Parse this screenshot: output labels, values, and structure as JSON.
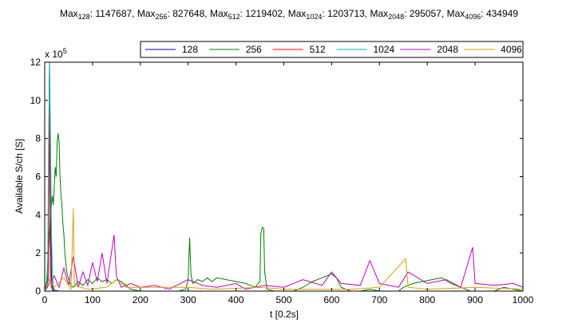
{
  "title_parts": [
    {
      "text": "Max",
      "sub": "128",
      "value": ": 1147687, "
    },
    {
      "text": "Max",
      "sub": "256",
      "value": ": 827648, "
    },
    {
      "text": "Max",
      "sub": "512",
      "value": ": 1219402, "
    },
    {
      "text": "Max",
      "sub": "1024",
      "value": ": 1203713, "
    },
    {
      "text": "Max",
      "sub": "2048",
      "value": ": 295057, "
    },
    {
      "text": "Max",
      "sub": "4096",
      "value": ": 434949"
    }
  ],
  "chart_data": {
    "type": "line",
    "xlabel": "t [0.2s]",
    "ylabel": "Available S/ch [S]",
    "xlim": [
      0,
      1000
    ],
    "ylim": [
      0,
      1200000
    ],
    "xticks": [
      0,
      100,
      200,
      300,
      400,
      500,
      600,
      700,
      800,
      900,
      1000
    ],
    "yticks": [
      0,
      2,
      4,
      6,
      8,
      10,
      12
    ],
    "y_multiplier_base": "x 10",
    "y_multiplier_exp": "5",
    "grid": false,
    "legend_position": "top-right",
    "series": [
      {
        "name": "128",
        "color": "#0000b4",
        "points": [
          [
            5,
            20000
          ],
          [
            8,
            300000
          ],
          [
            10,
            1147687
          ],
          [
            12,
            500000
          ],
          [
            14,
            80000
          ],
          [
            16,
            20000
          ],
          [
            18,
            5000
          ],
          [
            30,
            0
          ],
          [
            100,
            0
          ],
          [
            300,
            0
          ],
          [
            600,
            0
          ],
          [
            1000,
            0
          ]
        ]
      },
      {
        "name": "256",
        "color": "#008000",
        "points": [
          [
            0,
            0
          ],
          [
            4,
            50000
          ],
          [
            8,
            200000
          ],
          [
            12,
            400000
          ],
          [
            16,
            500000
          ],
          [
            18,
            450000
          ],
          [
            20,
            550000
          ],
          [
            22,
            650000
          ],
          [
            24,
            600000
          ],
          [
            26,
            780000
          ],
          [
            28,
            827648
          ],
          [
            30,
            780000
          ],
          [
            32,
            600000
          ],
          [
            34,
            500000
          ],
          [
            36,
            450000
          ],
          [
            38,
            350000
          ],
          [
            40,
            300000
          ],
          [
            42,
            200000
          ],
          [
            44,
            150000
          ],
          [
            46,
            100000
          ],
          [
            50,
            60000
          ],
          [
            55,
            30000
          ],
          [
            60,
            20000
          ],
          [
            70,
            50000
          ],
          [
            80,
            30000
          ],
          [
            90,
            60000
          ],
          [
            100,
            40000
          ],
          [
            110,
            70000
          ],
          [
            120,
            50000
          ],
          [
            130,
            60000
          ],
          [
            140,
            40000
          ],
          [
            150,
            60000
          ],
          [
            160,
            50000
          ],
          [
            170,
            30000
          ],
          [
            180,
            10000
          ],
          [
            200,
            0
          ],
          [
            280,
            0
          ],
          [
            295,
            10000
          ],
          [
            300,
            60000
          ],
          [
            303,
            280000
          ],
          [
            306,
            80000
          ],
          [
            310,
            40000
          ],
          [
            320,
            60000
          ],
          [
            330,
            50000
          ],
          [
            340,
            70000
          ],
          [
            350,
            50000
          ],
          [
            360,
            70000
          ],
          [
            380,
            60000
          ],
          [
            400,
            50000
          ],
          [
            420,
            40000
          ],
          [
            440,
            20000
          ],
          [
            450,
            50000
          ],
          [
            452,
            300000
          ],
          [
            455,
            335000
          ],
          [
            458,
            330000
          ],
          [
            460,
            100000
          ],
          [
            465,
            10000
          ],
          [
            480,
            0
          ],
          [
            520,
            0
          ],
          [
            540,
            20000
          ],
          [
            560,
            50000
          ],
          [
            580,
            70000
          ],
          [
            600,
            90000
          ],
          [
            610,
            70000
          ],
          [
            620,
            20000
          ],
          [
            640,
            0
          ],
          [
            660,
            0
          ],
          [
            680,
            10000
          ],
          [
            700,
            0
          ],
          [
            740,
            0
          ],
          [
            750,
            20000
          ],
          [
            770,
            40000
          ],
          [
            790,
            50000
          ],
          [
            810,
            60000
          ],
          [
            830,
            70000
          ],
          [
            850,
            40000
          ],
          [
            870,
            20000
          ],
          [
            890,
            0
          ],
          [
            940,
            0
          ],
          [
            960,
            20000
          ],
          [
            980,
            10000
          ],
          [
            1000,
            0
          ]
        ]
      },
      {
        "name": "512",
        "color": "#ff0000",
        "points": [
          [
            0,
            0
          ],
          [
            8,
            50000
          ],
          [
            9,
            900000
          ],
          [
            10,
            1219402
          ],
          [
            11,
            600000
          ],
          [
            12,
            100000
          ],
          [
            14,
            20000
          ],
          [
            18,
            0
          ],
          [
            100,
            0
          ],
          [
            1000,
            0
          ]
        ]
      },
      {
        "name": "1024",
        "color": "#00b4b4",
        "points": [
          [
            0,
            0
          ],
          [
            6,
            20000
          ],
          [
            8,
            700000
          ],
          [
            10,
            1203713
          ],
          [
            12,
            800000
          ],
          [
            14,
            300000
          ],
          [
            16,
            100000
          ],
          [
            18,
            20000
          ],
          [
            22,
            0
          ],
          [
            100,
            0
          ],
          [
            1000,
            0
          ]
        ]
      },
      {
        "name": "2048",
        "color": "#c000c0",
        "points": [
          [
            0,
            0
          ],
          [
            20,
            80000
          ],
          [
            30,
            20000
          ],
          [
            40,
            120000
          ],
          [
            50,
            30000
          ],
          [
            60,
            180000
          ],
          [
            70,
            20000
          ],
          [
            80,
            100000
          ],
          [
            90,
            30000
          ],
          [
            100,
            150000
          ],
          [
            110,
            50000
          ],
          [
            120,
            200000
          ],
          [
            130,
            40000
          ],
          [
            145,
            295057
          ],
          [
            150,
            80000
          ],
          [
            160,
            20000
          ],
          [
            180,
            40000
          ],
          [
            200,
            20000
          ],
          [
            230,
            30000
          ],
          [
            260,
            10000
          ],
          [
            300,
            60000
          ],
          [
            330,
            30000
          ],
          [
            360,
            20000
          ],
          [
            400,
            40000
          ],
          [
            420,
            10000
          ],
          [
            460,
            30000
          ],
          [
            500,
            20000
          ],
          [
            540,
            60000
          ],
          [
            580,
            30000
          ],
          [
            600,
            100000
          ],
          [
            620,
            40000
          ],
          [
            660,
            30000
          ],
          [
            680,
            160000
          ],
          [
            700,
            40000
          ],
          [
            740,
            20000
          ],
          [
            760,
            100000
          ],
          [
            800,
            40000
          ],
          [
            840,
            60000
          ],
          [
            870,
            20000
          ],
          [
            895,
            230000
          ],
          [
            900,
            40000
          ],
          [
            940,
            30000
          ],
          [
            980,
            40000
          ],
          [
            1000,
            20000
          ]
        ]
      },
      {
        "name": "4096",
        "color": "#dca000",
        "points": [
          [
            0,
            0
          ],
          [
            10,
            60000
          ],
          [
            20,
            20000
          ],
          [
            40,
            70000
          ],
          [
            55,
            10000
          ],
          [
            60,
            434949
          ],
          [
            62,
            30000
          ],
          [
            90,
            10000
          ],
          [
            130,
            20000
          ],
          [
            150,
            60000
          ],
          [
            170,
            20000
          ],
          [
            300,
            20000
          ],
          [
            350,
            10000
          ],
          [
            450,
            20000
          ],
          [
            500,
            10000
          ],
          [
            640,
            10000
          ],
          [
            700,
            20000
          ],
          [
            755,
            170000
          ],
          [
            760,
            20000
          ],
          [
            800,
            10000
          ],
          [
            900,
            20000
          ],
          [
            1000,
            10000
          ]
        ]
      }
    ]
  }
}
